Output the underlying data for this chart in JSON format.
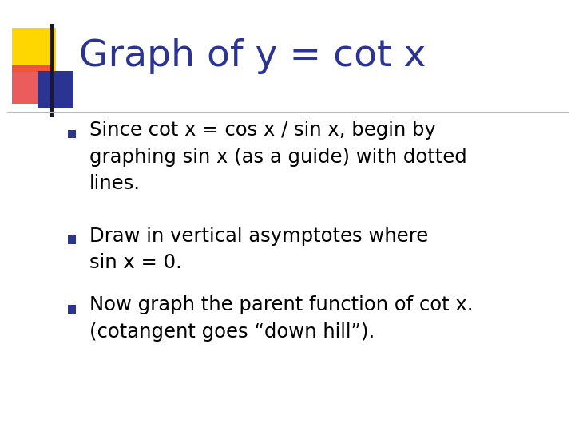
{
  "title": "Graph of y = cot x",
  "title_color": "#2B3490",
  "title_fontsize": 34,
  "background_color": "#FFFFFF",
  "bullet_square_color": "#2B3490",
  "bullet_text_color": "#000000",
  "bullet_fontsize": 17.5,
  "bullet1_line1": "Since cot x = cos x / sin x, begin by",
  "bullet1_line2": "graphing sin x (as a guide) with dotted",
  "bullet1_line3": "lines.",
  "bullet2_line1": "Draw in vertical asymptotes where",
  "bullet2_line2": "sin x = 0.",
  "bullet3_line1": "Now graph the parent function of cot x.",
  "bullet3_line2": "(cotangent goes “down hill”).",
  "yellow_color": "#FFD700",
  "red_color": "#E84040",
  "blue_color": "#2B3490",
  "line_color": "#BBBBBB",
  "vbar_color": "#1a1a2e"
}
